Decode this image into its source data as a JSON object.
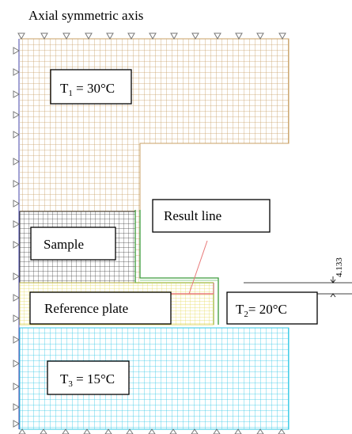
{
  "title": "Axial symmetric axis",
  "labels": {
    "t1_main": "T",
    "t1_sub": "1",
    "t1_val": " = 30°C",
    "sample": "Sample",
    "result_line": "Result line",
    "dimension": "4.133",
    "reference_plate": "Reference plate",
    "t2_main": "T",
    "t2_sub": "2",
    "t2_val": "= 20°C",
    "t3_main": "T",
    "t3_sub": "3",
    "t3_val": " = 15°C"
  },
  "colors": {
    "upper_mesh": "#c8a066",
    "sample_mesh": "#3a3a3a",
    "reference_mesh": "#ece06a",
    "lower_mesh": "#33c8e6",
    "insulation_strip": "#3a9a3a",
    "result_line": "#e87878",
    "boundary_symbols": "#777777"
  },
  "icons": {
    "top_support": "triangle-down-icon",
    "left_support": "triangle-right-icon",
    "bottom_support": "triangle-up-icon"
  }
}
